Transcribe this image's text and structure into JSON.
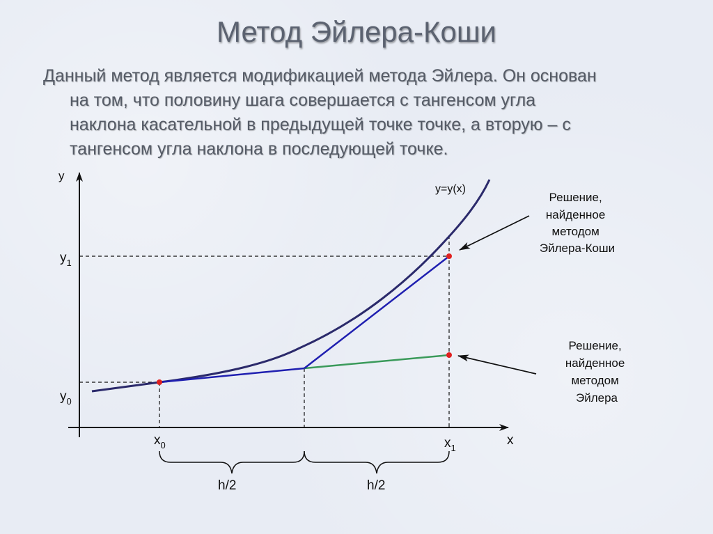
{
  "title": "Метод Эйлера-Коши",
  "description": [
    "Данный метод является модификацией метода Эйлера. Он основан",
    "на том, что половину шага совершается с тангенсом угла",
    "наклона касательной в предыдущей точке точке, а вторую – с",
    "тангенсом угла наклона в последующей точке."
  ],
  "diagram": {
    "axis_x": "x",
    "axis_y": "y",
    "curve_label": "y=y(x)",
    "x0": {
      "base": "x",
      "sub": "0"
    },
    "x1": {
      "base": "x",
      "sub": "1"
    },
    "y0": {
      "base": "y",
      "sub": "0"
    },
    "y1": {
      "base": "y",
      "sub": "1"
    },
    "half_step_left": "h/2",
    "half_step_right": "h/2",
    "annotation_cauchy": [
      "Решение,",
      "найденное",
      "методом",
      "Эйлера-Коши"
    ],
    "annotation_euler": [
      "Решение,",
      "найденное",
      "методом",
      "Эйлера"
    ],
    "colors": {
      "curve": "#2b2a6b",
      "cauchy_line": "#1f1fb0",
      "euler_line": "#3a9a5a",
      "points": "#e02020",
      "axes": "#111111"
    }
  }
}
